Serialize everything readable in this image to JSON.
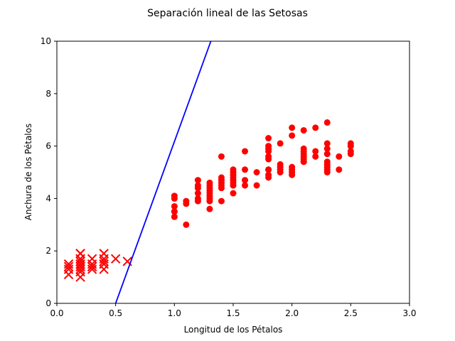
{
  "chart_data": {
    "type": "scatter",
    "title": "Separación lineal de las Setosas",
    "xlabel": "Longitud de los Pétalos",
    "ylabel": "Anchura de los Pétalos",
    "xlim": [
      0.0,
      3.0
    ],
    "ylim": [
      0,
      10
    ],
    "xticks": [
      "0.0",
      "0.5",
      "1.0",
      "1.5",
      "2.0",
      "2.5",
      "3.0"
    ],
    "yticks": [
      "0",
      "2",
      "4",
      "6",
      "8",
      "10"
    ],
    "grid": false,
    "colors": {
      "points": "#ff0000",
      "line": "#0000ff",
      "axes": "#000000"
    },
    "series": [
      {
        "marker": "x",
        "x": [
          0.1,
          0.1,
          0.1,
          0.1,
          0.2,
          0.2,
          0.2,
          0.2,
          0.2,
          0.2,
          0.2,
          0.2,
          0.2,
          0.2,
          0.2,
          0.2,
          0.2,
          0.3,
          0.3,
          0.3,
          0.3,
          0.3,
          0.4,
          0.4,
          0.4,
          0.4,
          0.4,
          0.4,
          0.5,
          0.6
        ],
        "y": [
          1.1,
          1.3,
          1.4,
          1.5,
          1.0,
          1.2,
          1.3,
          1.4,
          1.4,
          1.5,
          1.5,
          1.6,
          1.6,
          1.7,
          1.7,
          1.9,
          1.9,
          1.3,
          1.4,
          1.4,
          1.5,
          1.7,
          1.3,
          1.5,
          1.5,
          1.6,
          1.7,
          1.9,
          1.7,
          1.6
        ]
      },
      {
        "marker": "o",
        "x": [
          1.0,
          1.0,
          1.0,
          1.0,
          1.0,
          1.0,
          1.1,
          1.1,
          1.1,
          1.2,
          1.2,
          1.2,
          1.2,
          1.2,
          1.2,
          1.3,
          1.3,
          1.3,
          1.3,
          1.3,
          1.3,
          1.3,
          1.3,
          1.3,
          1.4,
          1.4,
          1.4,
          1.4,
          1.4,
          1.4,
          1.4,
          1.5,
          1.5,
          1.5,
          1.5,
          1.5,
          1.5,
          1.5,
          1.5,
          1.5,
          1.6,
          1.6,
          1.6,
          1.6,
          1.7,
          1.7,
          1.8,
          1.8,
          1.8,
          1.8,
          1.8,
          1.8,
          1.8,
          1.8,
          1.8,
          1.8,
          1.9,
          1.9,
          1.9,
          1.9,
          1.9,
          2.0,
          2.0,
          2.0,
          2.0,
          2.0,
          2.0,
          2.1,
          2.1,
          2.1,
          2.1,
          2.1,
          2.1,
          2.1,
          2.1,
          2.2,
          2.2,
          2.2,
          2.3,
          2.3,
          2.3,
          2.3,
          2.3,
          2.3,
          2.3,
          2.3,
          2.3,
          2.4,
          2.4,
          2.5,
          2.5,
          2.5,
          2.5
        ],
        "y": [
          3.3,
          3.5,
          3.7,
          4.0,
          4.1,
          3.5,
          3.0,
          3.8,
          3.9,
          3.9,
          4.0,
          4.2,
          4.4,
          4.5,
          4.7,
          3.6,
          4.0,
          4.1,
          4.2,
          4.3,
          4.4,
          4.5,
          4.6,
          3.9,
          3.9,
          4.4,
          4.5,
          4.7,
          4.8,
          5.6,
          4.6,
          4.2,
          4.5,
          4.6,
          4.9,
          5.0,
          5.1,
          4.7,
          4.8,
          4.5,
          4.5,
          4.7,
          5.1,
          5.8,
          4.5,
          5.0,
          4.8,
          4.9,
          5.1,
          5.5,
          5.6,
          5.8,
          6.0,
          6.3,
          5.9,
          5.1,
          5.0,
          5.1,
          5.3,
          6.1,
          5.2,
          4.9,
          5.0,
          5.1,
          5.2,
          6.4,
          6.7,
          5.4,
          5.5,
          5.6,
          5.7,
          5.9,
          6.6,
          5.8,
          5.4,
          5.6,
          5.8,
          6.7,
          5.1,
          5.3,
          5.4,
          5.7,
          5.9,
          6.1,
          6.9,
          5.2,
          5.0,
          5.1,
          5.6,
          5.7,
          6.0,
          6.1,
          5.8
        ]
      },
      {
        "marker": "line",
        "x": [
          0.5,
          1.31
        ],
        "y": [
          0,
          10
        ]
      }
    ]
  }
}
